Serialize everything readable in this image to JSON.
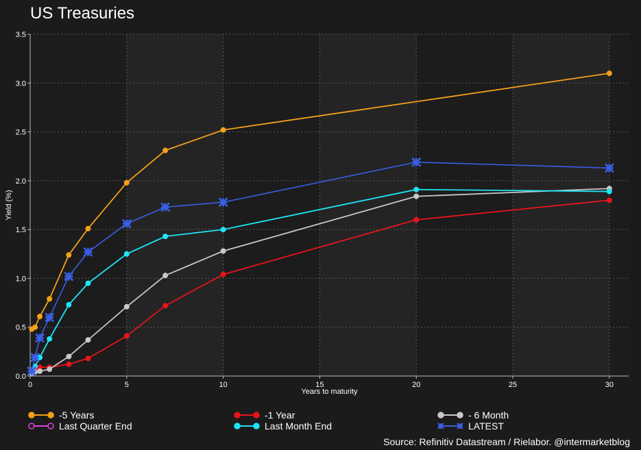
{
  "title": "US Treasuries",
  "source": "Source: Refinitiv Datastream /  Rielabor. @intermarketblog",
  "chart_data": {
    "type": "line",
    "xlabel": "Years to maturity",
    "ylabel": "Yield (%)",
    "xlim": [
      0,
      31
    ],
    "ylim": [
      0,
      3.5
    ],
    "x_ticks": [
      0,
      5,
      10,
      15,
      20,
      25,
      30
    ],
    "y_ticks": [
      0.0,
      0.5,
      1.0,
      1.5,
      2.0,
      2.5,
      3.0,
      3.5
    ],
    "y_tick_labels": [
      "0.0",
      "0.5",
      "1.0",
      "1.5",
      "2.0",
      "2.5",
      "3.0",
      "3.5"
    ],
    "grid": true,
    "legend_position": "bottom",
    "series": [
      {
        "name": "-5 Years",
        "color": "#f5a01a",
        "marker": "circle",
        "x": [
          0.083,
          0.25,
          0.5,
          1,
          2,
          3,
          5,
          7,
          10,
          30
        ],
        "y": [
          0.48,
          0.5,
          0.61,
          0.79,
          1.24,
          1.51,
          1.98,
          2.31,
          2.52,
          3.1
        ]
      },
      {
        "name": "-1 Year",
        "color": "#e8141b",
        "marker": "circle",
        "x": [
          0.083,
          0.25,
          0.5,
          1,
          2,
          3,
          5,
          7,
          10,
          20,
          30
        ],
        "y": [
          0.06,
          0.07,
          0.09,
          0.09,
          0.12,
          0.18,
          0.41,
          0.72,
          1.04,
          1.6,
          1.8
        ]
      },
      {
        "name": "- 6 Month",
        "color": "#c8c8c8",
        "marker": "circle",
        "x": [
          0.083,
          0.25,
          0.5,
          1,
          2,
          3,
          5,
          7,
          10,
          20,
          30
        ],
        "y": [
          0.03,
          0.04,
          0.05,
          0.07,
          0.2,
          0.37,
          0.71,
          1.03,
          1.28,
          1.84,
          1.92
        ]
      },
      {
        "name": "Last Quarter End",
        "color": "#e040e0",
        "marker": "circle",
        "x": [],
        "y": []
      },
      {
        "name": "Last Month End",
        "color": "#1fe5f5",
        "marker": "circle",
        "x": [
          0.083,
          0.25,
          0.5,
          1,
          2,
          3,
          5,
          7,
          10,
          20,
          30
        ],
        "y": [
          0.05,
          0.1,
          0.19,
          0.38,
          0.73,
          0.95,
          1.25,
          1.43,
          1.5,
          1.91,
          1.89
        ]
      },
      {
        "name": "LATEST",
        "color": "#3a5fe6",
        "marker": "x",
        "x": [
          0.083,
          0.25,
          0.5,
          1,
          2,
          3,
          5,
          7,
          10,
          20,
          30
        ],
        "y": [
          0.05,
          0.19,
          0.39,
          0.6,
          1.02,
          1.27,
          1.56,
          1.73,
          1.78,
          2.19,
          2.13
        ]
      }
    ]
  }
}
